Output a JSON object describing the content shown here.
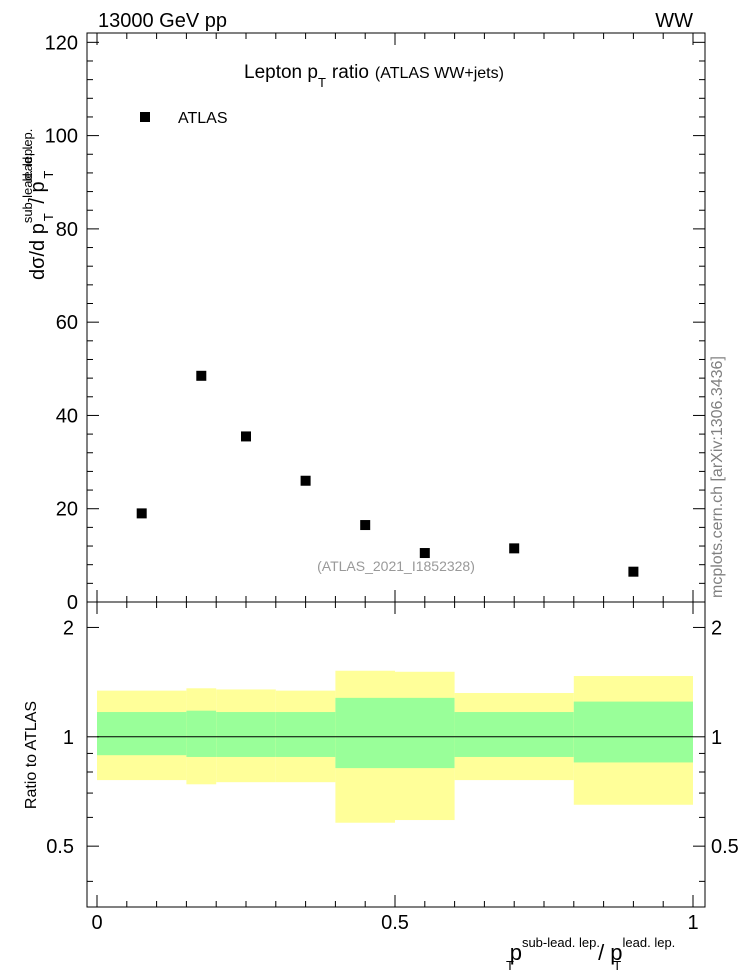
{
  "header": {
    "left": "13000 GeV pp",
    "right": "WW"
  },
  "side_label": "mcplots.cern.ch [arXiv:1306.3436]",
  "colors": {
    "marker": "#000000",
    "band_inner": "#99ff99",
    "band_outer": "#ffff99",
    "frame": "#000000"
  },
  "chart_data": [
    {
      "type": "scatter",
      "title": "Lepton p",
      "title_sub": "T",
      "title_rest": "ratio",
      "title_note": "(ATLAS WW+jets)",
      "ylabel": {
        "d1": "dσ/d p",
        "sup1": "sub-lead. lep.",
        "sub1": "T",
        "slash": " / p",
        "sup2": "lead. lep.",
        "sub2": "T"
      },
      "legend": "ATLAS",
      "watermark": "(ATLAS_2021_I1852328)",
      "xlim": [
        0,
        1
      ],
      "ylim": [
        0,
        122
      ],
      "yticks": [
        0,
        20,
        40,
        60,
        80,
        100,
        120
      ],
      "ytick_labels": [
        "0",
        "20",
        "40",
        "60",
        "80",
        "100",
        "120"
      ],
      "series": [
        {
          "name": "ATLAS",
          "x": [
            0.075,
            0.175,
            0.25,
            0.35,
            0.45,
            0.55,
            0.7,
            0.9
          ],
          "y": [
            19.0,
            48.5,
            35.5,
            26.0,
            16.5,
            10.5,
            11.5,
            6.5
          ]
        }
      ]
    },
    {
      "type": "area",
      "ylabel": "Ratio to ATLAS",
      "xlabel": {
        "p1": "p",
        "sup1": "sub-lead. lep.",
        "sub1": "T",
        "slash": " / p",
        "sup2": "lead. lep.",
        "sub2": "T"
      },
      "xlim": [
        0,
        1
      ],
      "ylim": [
        0.34,
        2.35
      ],
      "yticks": [
        0.5,
        1,
        2
      ],
      "ytick_labels": [
        "0.5",
        "1",
        "2"
      ],
      "xticks": [
        0,
        0.5,
        1
      ],
      "xtick_labels": [
        "0",
        "0.5",
        "1"
      ],
      "reference_line": 1,
      "bins": [
        {
          "x0": 0.0,
          "x1": 0.15,
          "inner": [
            0.89,
            1.17
          ],
          "outer": [
            0.76,
            1.34
          ]
        },
        {
          "x0": 0.15,
          "x1": 0.2,
          "inner": [
            0.88,
            1.18
          ],
          "outer": [
            0.74,
            1.36
          ]
        },
        {
          "x0": 0.2,
          "x1": 0.3,
          "inner": [
            0.88,
            1.17
          ],
          "outer": [
            0.75,
            1.35
          ]
        },
        {
          "x0": 0.3,
          "x1": 0.4,
          "inner": [
            0.88,
            1.17
          ],
          "outer": [
            0.75,
            1.34
          ]
        },
        {
          "x0": 0.4,
          "x1": 0.5,
          "inner": [
            0.82,
            1.28
          ],
          "outer": [
            0.58,
            1.52
          ]
        },
        {
          "x0": 0.5,
          "x1": 0.6,
          "inner": [
            0.82,
            1.28
          ],
          "outer": [
            0.59,
            1.51
          ]
        },
        {
          "x0": 0.6,
          "x1": 0.8,
          "inner": [
            0.88,
            1.17
          ],
          "outer": [
            0.76,
            1.32
          ]
        },
        {
          "x0": 0.8,
          "x1": 1.0,
          "inner": [
            0.85,
            1.25
          ],
          "outer": [
            0.65,
            1.47
          ]
        }
      ]
    }
  ]
}
